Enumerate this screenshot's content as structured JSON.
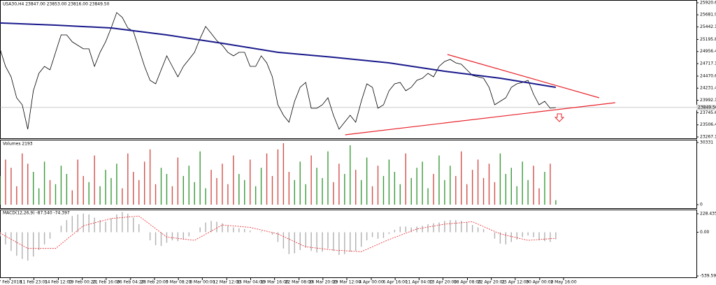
{
  "chart_data": [
    {
      "type": "line",
      "title": "USA30,H4 23847.00 23853.00 23816.00 23849.50",
      "color": "#000000",
      "values": [
        25009,
        24663,
        24456,
        24041,
        23903,
        23419,
        24180,
        24525,
        24663,
        24594,
        24940,
        25285,
        25285,
        25147,
        25078,
        25009,
        25009,
        24663,
        24940,
        25147,
        25423,
        25727,
        25631,
        25423,
        25354,
        25009,
        24663,
        24387,
        24318,
        24594,
        24870,
        24663,
        24456,
        24663,
        24801,
        24940,
        25216,
        25451,
        25313,
        25174,
        25078,
        24940,
        24870,
        24940,
        24940,
        24663,
        24663,
        24870,
        24732,
        24456,
        23903,
        23696,
        23558,
        23972,
        24249,
        24345,
        23834,
        23834,
        23903,
        24041,
        23696,
        23419,
        23558,
        23696,
        23558,
        23972,
        24318,
        24249,
        23834,
        23903,
        24180,
        24318,
        24345,
        24180,
        24249,
        24387,
        24428,
        24525,
        24456,
        24663,
        24760,
        24801,
        24732,
        24704,
        24594,
        24483,
        24456,
        24428,
        24249,
        23903,
        23972,
        24041,
        24249,
        24318,
        24345,
        24387,
        24110,
        23903,
        23972,
        23834,
        23849.5
      ],
      "moving_average": {
        "color": "#1a1a8c",
        "x": [
          0,
          10,
          20,
          30,
          40,
          50,
          60,
          70,
          80,
          90,
          100
        ],
        "values": [
          25520,
          25478,
          25423,
          25285,
          25119,
          24940,
          24843,
          24732,
          24566,
          24428,
          24249
        ]
      },
      "trendlines": [
        {
          "color": "#e8242c",
          "x": [
            80.5,
            107.8
          ],
          "values": [
            24898,
            24041
          ]
        },
        {
          "color": "#e8242c",
          "x": [
            62.1,
            110.7
          ],
          "values": [
            23309,
            23944
          ]
        }
      ],
      "last_price": {
        "value": 23849.5,
        "label": "23849.50"
      },
      "xlim": [
        0,
        125.3
      ],
      "ylim": [
        23240,
        25975
      ],
      "yticks": [
        25920.65,
        {
          "value": 25681.9,
          "label": "25681.90"
        },
        25442.15,
        25195.85,
        {
          "value": 24956.4,
          "label": "24956.40"
        },
        24717.15,
        24470.65,
        {
          "value": 24231.4,
          "label": "24231.40"
        },
        23992.15,
        23745.65,
        {
          "value": 23506.4,
          "label": "23506.40"
        },
        23267.15
      ],
      "xticks": [
        {
          "value": 1.8,
          "label": "7 Feb 2018"
        },
        {
          "value": 6.1,
          "label": "11 Feb 23:01"
        },
        {
          "value": 10.5,
          "label": "14 Feb 12:00"
        },
        {
          "value": 14.8,
          "label": "19 Feb 00:20"
        },
        {
          "value": 19.1,
          "label": "21 Feb 16:00"
        },
        {
          "value": 23.5,
          "label": "26 Feb 04:20"
        },
        {
          "value": 27.8,
          "label": "28 Feb 20:00"
        },
        {
          "value": 32.1,
          "label": "5 Mar 08:20"
        },
        {
          "value": 36.4,
          "label": "8 Mar 00:00"
        },
        {
          "value": 40.8,
          "label": "12 Mar 12:00"
        },
        {
          "value": 45.1,
          "label": "15 Mar 04:00"
        },
        {
          "value": 49.4,
          "label": "19 Mar 16:00"
        },
        {
          "value": 53.8,
          "label": "22 Mar 08:00"
        },
        {
          "value": 58.1,
          "label": "26 Mar 20:00"
        },
        {
          "value": 62.4,
          "label": "29 Mar 12:00"
        },
        {
          "value": 66.8,
          "label": "4 Apr 00:00"
        },
        {
          "value": 71.1,
          "label": "6 Apr 16:00"
        },
        {
          "value": 75.4,
          "label": "11 Apr 04:00"
        },
        {
          "value": 79.7,
          "label": "13 Apr 20:00"
        },
        {
          "value": 84.1,
          "label": "18 Apr 08:00"
        },
        {
          "value": 88.4,
          "label": "22 Apr 20:01"
        },
        {
          "value": 92.7,
          "label": "25 Apr 12:00"
        },
        {
          "value": 97.1,
          "label": "30 Apr 00:00"
        },
        {
          "value": 101.4,
          "label": "2 May 16:00"
        }
      ]
    },
    {
      "type": "volume",
      "title": "Volumes 2193",
      "up_color": "#3a9a3a",
      "down_color": "#d0504a",
      "values": [
        14000,
        22000,
        18000,
        9000,
        25000,
        20000,
        16000,
        8000,
        21000,
        12000,
        10000,
        19000,
        15000,
        7000,
        22000,
        14000,
        11000,
        24000,
        9000,
        17000,
        13000,
        20000,
        8000,
        25000,
        16000,
        12000,
        21000,
        27000,
        10000,
        18000,
        15000,
        9000,
        23000,
        14000,
        19000,
        11000,
        26000,
        8000,
        17000,
        13000,
        20000,
        10000,
        24000,
        15000,
        12000,
        22000,
        9000,
        18000,
        25000,
        14000,
        27000,
        30000,
        16000,
        12000,
        21000,
        10000,
        24000,
        18000,
        13000,
        26000,
        11000,
        20000,
        15000,
        29000,
        17000,
        12000,
        23000,
        9000,
        19000,
        14000,
        22000,
        16000,
        10000,
        25000,
        13000,
        18000,
        21000,
        8000,
        15000,
        24000,
        12000,
        19000,
        14000,
        26000,
        10000,
        17000,
        22000,
        13000,
        20000,
        11000,
        25000,
        15000,
        18000,
        9000,
        21000,
        12000,
        19000,
        8000,
        16000,
        20000,
        2193
      ],
      "xlim": [
        0,
        125.3
      ],
      "ylim": [
        -1700,
        31700
      ],
      "yticks": [
        30331,
        0
      ]
    },
    {
      "type": "macd",
      "title": "MACD(12,26,9) -87.540 -74.397",
      "color": "#b0b0b0",
      "values": [
        -50,
        -150,
        -230,
        -290,
        -330,
        -350,
        -300,
        -220,
        -150,
        -80,
        0,
        80,
        150,
        200,
        220,
        230,
        220,
        180,
        150,
        130,
        170,
        220,
        250,
        230,
        180,
        100,
        0,
        -100,
        -160,
        -170,
        -130,
        -100,
        -110,
        -90,
        -50,
        0,
        60,
        120,
        140,
        130,
        110,
        80,
        60,
        50,
        40,
        20,
        0,
        10,
        0,
        -30,
        -120,
        -200,
        -270,
        -260,
        -220,
        -190,
        -230,
        -250,
        -240,
        -200,
        -230,
        -280,
        -270,
        -240,
        -230,
        -180,
        -100,
        -60,
        -80,
        -70,
        -20,
        30,
        70,
        70,
        60,
        70,
        80,
        100,
        110,
        120,
        140,
        150,
        150,
        140,
        120,
        90,
        60,
        40,
        0,
        -80,
        -140,
        -150,
        -120,
        -90,
        -60,
        -40,
        -60,
        -100,
        -110,
        -120,
        -87.54
      ],
      "signal": {
        "color": "#e8242c",
        "x": [
          0,
          5,
          10,
          15,
          20,
          25,
          30,
          35,
          40,
          45,
          50,
          55,
          60,
          65,
          70,
          75,
          80,
          85,
          90,
          95,
          100
        ],
        "values": [
          -10,
          -200,
          -200,
          80,
          170,
          200,
          -60,
          -100,
          90,
          60,
          -20,
          -180,
          -220,
          -240,
          -90,
          40,
          100,
          130,
          -20,
          -100,
          -74.397
        ]
      },
      "xlim": [
        0,
        125.3
      ],
      "ylim": [
        -565,
        280
      ],
      "yticks": [
        228.435,
        {
          "value": 0,
          "label": "0.00"
        },
        -539.597
      ]
    }
  ]
}
